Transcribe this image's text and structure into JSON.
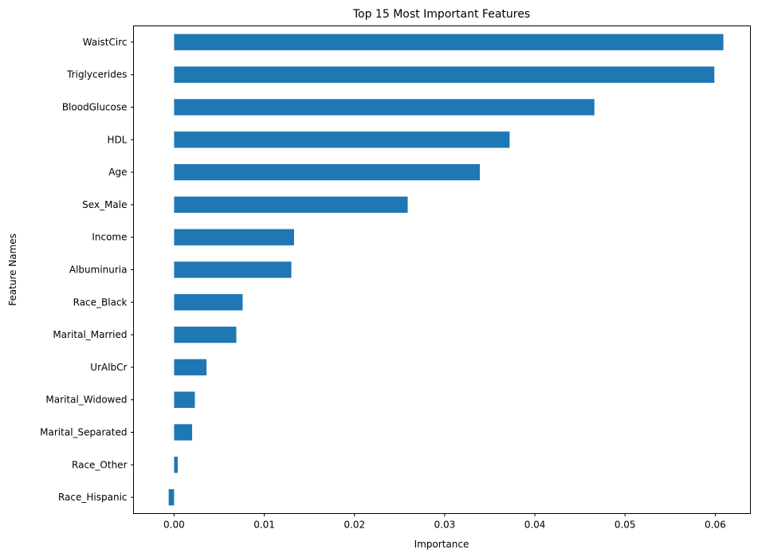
{
  "chart_data": {
    "type": "bar",
    "orientation": "horizontal",
    "title": "Top 15 Most Important Features",
    "xlabel": "Importance",
    "ylabel": "Feature Names",
    "categories": [
      "WaistCirc",
      "Triglycerides",
      "BloodGlucose",
      "HDL",
      "Age",
      "Sex_Male",
      "Income",
      "Albuminuria",
      "Race_Black",
      "Marital_Married",
      "UrAlbCr",
      "Marital_Widowed",
      "Marital_Separated",
      "Race_Other",
      "Race_Hispanic"
    ],
    "values": [
      0.0609,
      0.0599,
      0.0466,
      0.0372,
      0.0339,
      0.0259,
      0.0133,
      0.013,
      0.0076,
      0.0069,
      0.0036,
      0.0023,
      0.002,
      0.0004,
      -0.0006
    ],
    "xlim": [
      -0.0045,
      0.0639
    ],
    "xticks": [
      0.0,
      0.01,
      0.02,
      0.03,
      0.04,
      0.05,
      0.06
    ],
    "xtick_labels": [
      "0.00",
      "0.01",
      "0.02",
      "0.03",
      "0.04",
      "0.05",
      "0.06"
    ],
    "bar_color": "#1f77b4",
    "grid": false,
    "legend": "none"
  }
}
